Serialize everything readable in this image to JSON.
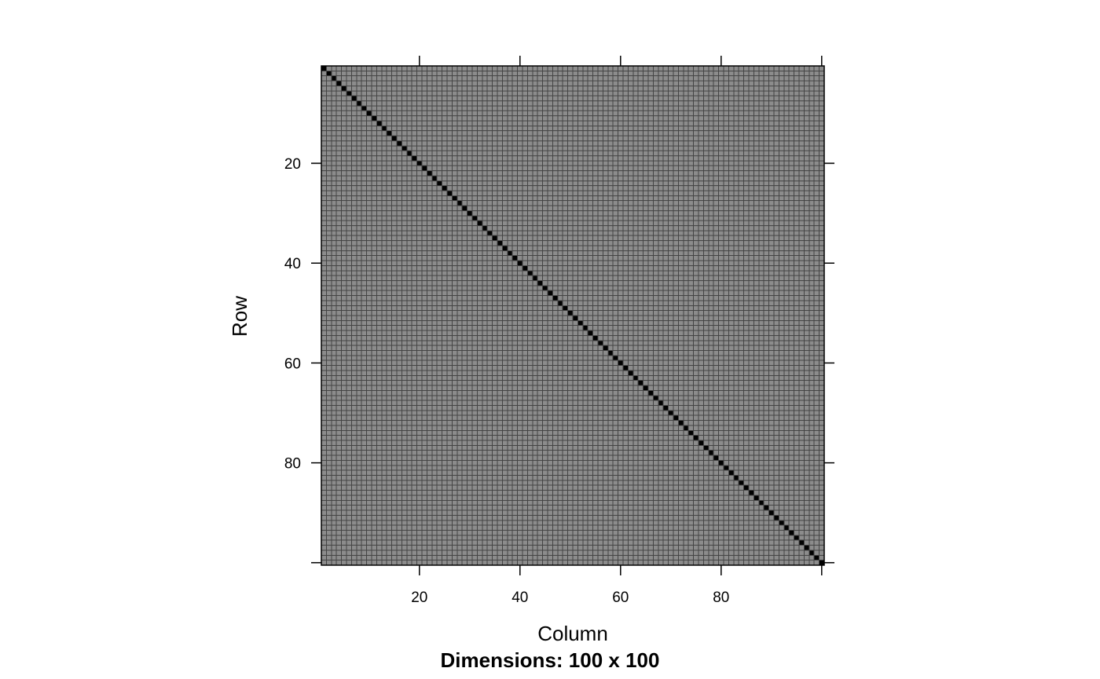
{
  "chart_data": {
    "type": "heatmap",
    "title": "",
    "subtitle": "Dimensions: 100 x 100",
    "xlabel": "Column",
    "ylabel": "Row",
    "rows": 100,
    "cols": 100,
    "xlim": [
      0.5,
      100.5
    ],
    "ylim": [
      0.5,
      100.5
    ],
    "y_axis_direction": "top-to-bottom",
    "x_ticks": [
      20,
      40,
      60,
      80,
      100
    ],
    "x_tick_labels": [
      "20",
      "40",
      "60",
      "80",
      ""
    ],
    "y_ticks": [
      20,
      40,
      60,
      80,
      100
    ],
    "y_tick_labels": [
      "20",
      "40",
      "60",
      "80",
      ""
    ],
    "diagonal_value": 1.0,
    "off_diagonal_value": 0.45,
    "colors": {
      "diagonal": "#000000",
      "off_diagonal": "#8c8c8c",
      "cell_border": "#444444",
      "frame": "#000000"
    },
    "grid": true
  }
}
